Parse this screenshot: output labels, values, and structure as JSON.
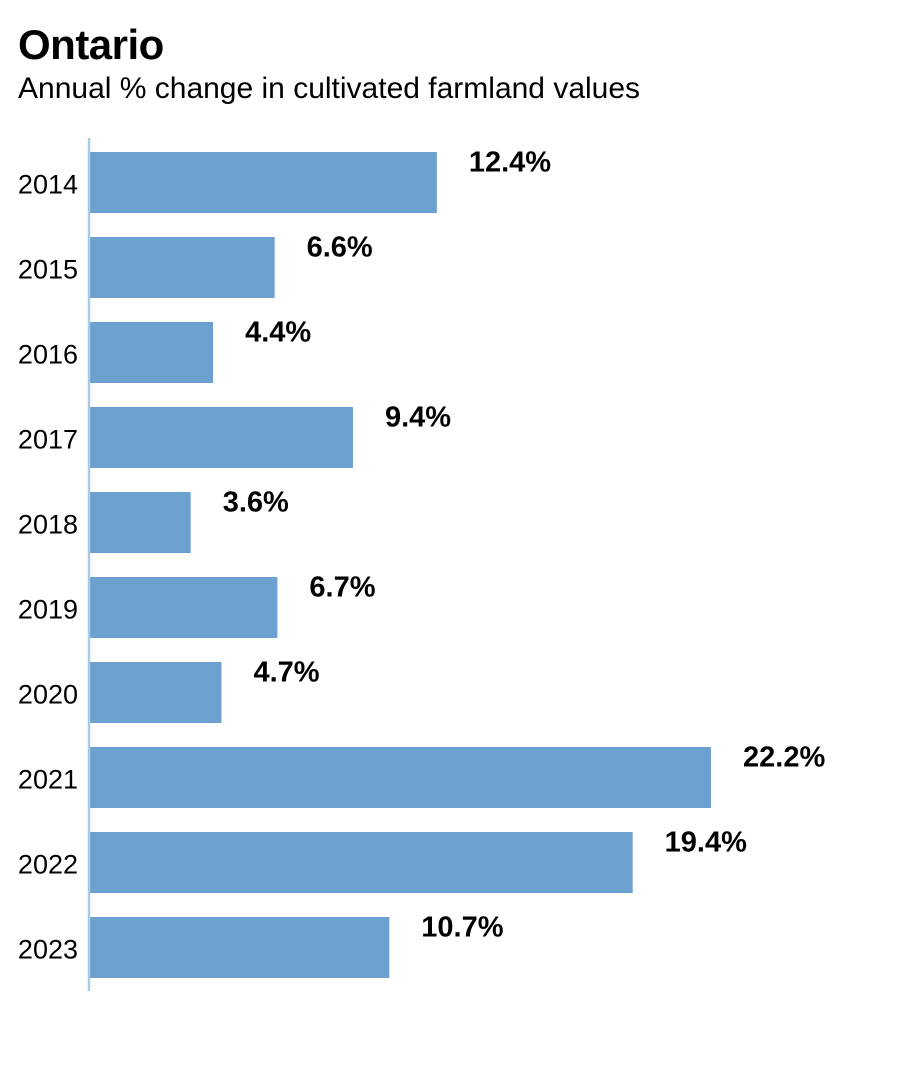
{
  "chart_data": {
    "type": "bar",
    "orientation": "horizontal",
    "title": "Ontario",
    "subtitle": "Annual % change in cultivated farmland values",
    "categories": [
      "2014",
      "2015",
      "2016",
      "2017",
      "2018",
      "2019",
      "2020",
      "2021",
      "2022",
      "2023"
    ],
    "values": [
      12.4,
      6.6,
      4.4,
      9.4,
      3.6,
      6.7,
      4.7,
      22.2,
      19.4,
      10.7
    ],
    "value_labels": [
      "12.4%",
      "6.6%",
      "4.4%",
      "9.4%",
      "3.6%",
      "6.7%",
      "4.7%",
      "22.2%",
      "19.4%",
      "10.7%"
    ],
    "xlim": [
      0,
      22.2
    ],
    "grid": false,
    "legend": "none",
    "bar_color": "#6ca1cf",
    "axis_color": "#a9cbe6"
  }
}
